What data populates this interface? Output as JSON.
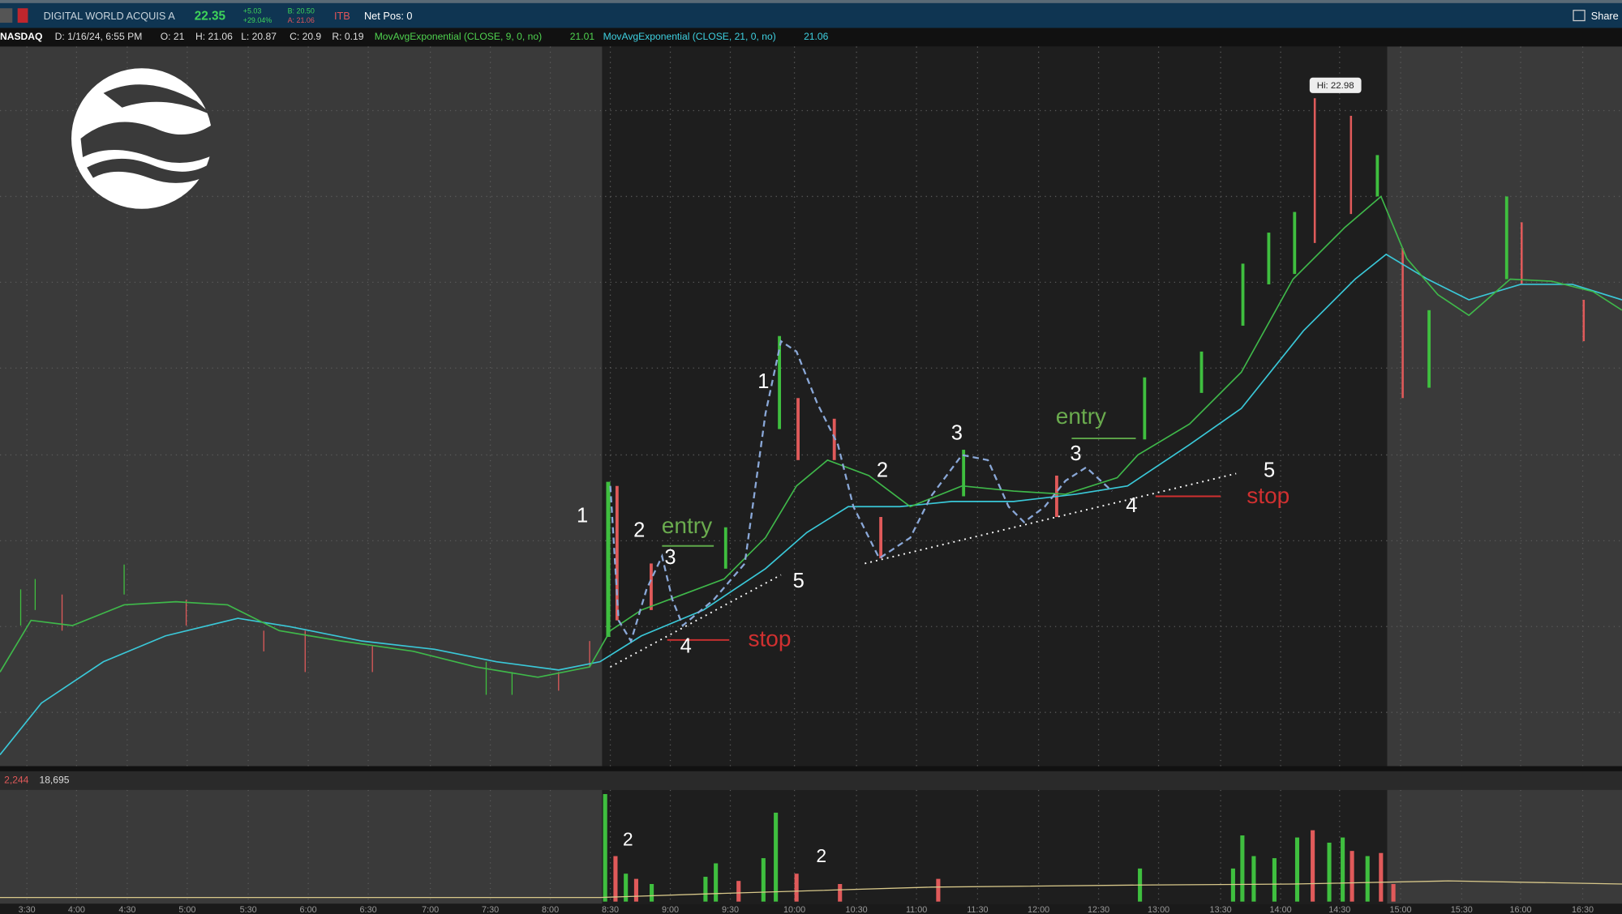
{
  "header": {
    "symbol": "DIGITAL WORLD ACQUIS A",
    "last": "22.35",
    "change": "+5.03",
    "change_pct": "+29.04%",
    "bid": "B: 20.50",
    "ask": "A: 21.06",
    "tag": "ITB",
    "net_pos": "Net Pos: 0",
    "share": "Share"
  },
  "info_bar": {
    "exchange": "NASDAQ",
    "date": "D: 1/16/24, 6:55 PM",
    "open": "O: 21",
    "high": "H: 21.06",
    "low": "L: 20.87",
    "close": "C: 20.9",
    "range": "R: 0.19",
    "study1": "MovAvgExponential (CLOSE, 9, 0, no)",
    "study1_value": "21.01",
    "study2": "MovAvgExponential (CLOSE, 21, 0, no)",
    "study2_value": "21.06"
  },
  "high_label": "Hi: 22.98",
  "annotations": [
    "1",
    "2",
    "entry",
    "3",
    "4",
    "5",
    "stop",
    "1",
    "2",
    "3",
    "3",
    "entry",
    "4",
    "5",
    "stop"
  ],
  "volume_header": [
    "2,244",
    "18,695"
  ],
  "volume_annotations": [
    "2",
    "2"
  ],
  "time_axis": [
    "3:30",
    "4:00",
    "4:30",
    "5:00",
    "5:30",
    "6:00",
    "6:30",
    "7:00",
    "7:30",
    "8:00",
    "8:30",
    "9:00",
    "9:30",
    "10:00",
    "10:30",
    "11:00",
    "11:30",
    "12:00",
    "12:30",
    "13:00",
    "13:30",
    "14:00",
    "14:30",
    "15:00",
    "15:30",
    "16:00",
    "16:30"
  ]
}
